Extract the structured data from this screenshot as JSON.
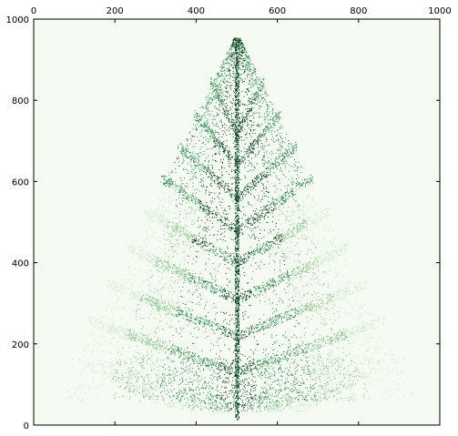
{
  "chart_data": {
    "type": "scatter",
    "title": "",
    "xlabel": "",
    "ylabel": "",
    "xlim": [
      0,
      1000
    ],
    "ylim": [
      0,
      1000
    ],
    "x_ticks": [
      "0",
      "200",
      "400",
      "600",
      "800",
      "1000"
    ],
    "y_ticks": [
      "0",
      "200",
      "400",
      "600",
      "800",
      "1000"
    ],
    "x_tick_position": "top",
    "grid": false,
    "legend": "none",
    "colormap": "Greens",
    "background_color": "#f5fbf2",
    "point_colors": [
      "#c7e9c0",
      "#74c476",
      "#238b45",
      "#00441b"
    ],
    "description_shape": "fern-like tree",
    "trunk_x": 500,
    "apex_y": 970,
    "base_y": 15,
    "left_extent_x": 55,
    "right_extent_x": 940,
    "branch_levels_y": [
      250,
      340,
      430,
      520,
      600,
      680,
      760,
      840
    ]
  }
}
